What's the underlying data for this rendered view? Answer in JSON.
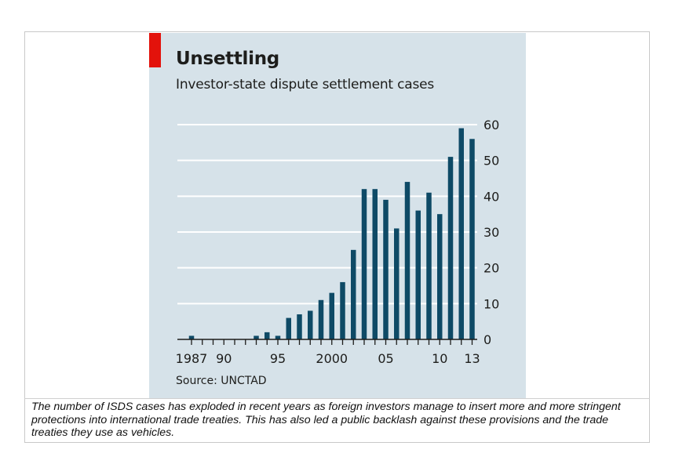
{
  "chart_data": {
    "type": "bar",
    "title": "Unsettling",
    "subtitle": "Investor-state dispute settlement cases",
    "source": "Source: UNCTAD",
    "x": [
      1987,
      1988,
      1989,
      1990,
      1991,
      1992,
      1993,
      1994,
      1995,
      1996,
      1997,
      1998,
      1999,
      2000,
      2001,
      2002,
      2003,
      2004,
      2005,
      2006,
      2007,
      2008,
      2009,
      2010,
      2011,
      2012,
      2013
    ],
    "values": [
      1,
      0,
      0,
      0,
      0,
      0,
      1,
      2,
      1,
      6,
      7,
      8,
      11,
      13,
      16,
      25,
      42,
      42,
      39,
      31,
      44,
      36,
      41,
      35,
      51,
      59,
      56
    ],
    "xtick_labels": [
      {
        "year": 1987,
        "label": "1987"
      },
      {
        "year": 1990,
        "label": "90"
      },
      {
        "year": 1995,
        "label": "95"
      },
      {
        "year": 2000,
        "label": "2000"
      },
      {
        "year": 2005,
        "label": "05"
      },
      {
        "year": 2010,
        "label": "10"
      },
      {
        "year": 2013,
        "label": "13"
      }
    ],
    "yticks": [
      0,
      10,
      20,
      30,
      40,
      50,
      60
    ],
    "ylim": [
      0,
      60
    ],
    "ytick_side": "right",
    "xlabel": "",
    "ylabel": "",
    "grid": true,
    "colors": {
      "bar": "#0e4a66",
      "grid": "#ffffff",
      "axis": "#1d1d1b",
      "panel": "#d6e2e9",
      "accent": "#e3120b"
    }
  },
  "caption": "The number of ISDS cases has exploded in recent years as foreign investors manage to insert more and more stringent protections into international trade treaties. This has also led a public backlash against these provisions and the trade treaties they use as vehicles."
}
